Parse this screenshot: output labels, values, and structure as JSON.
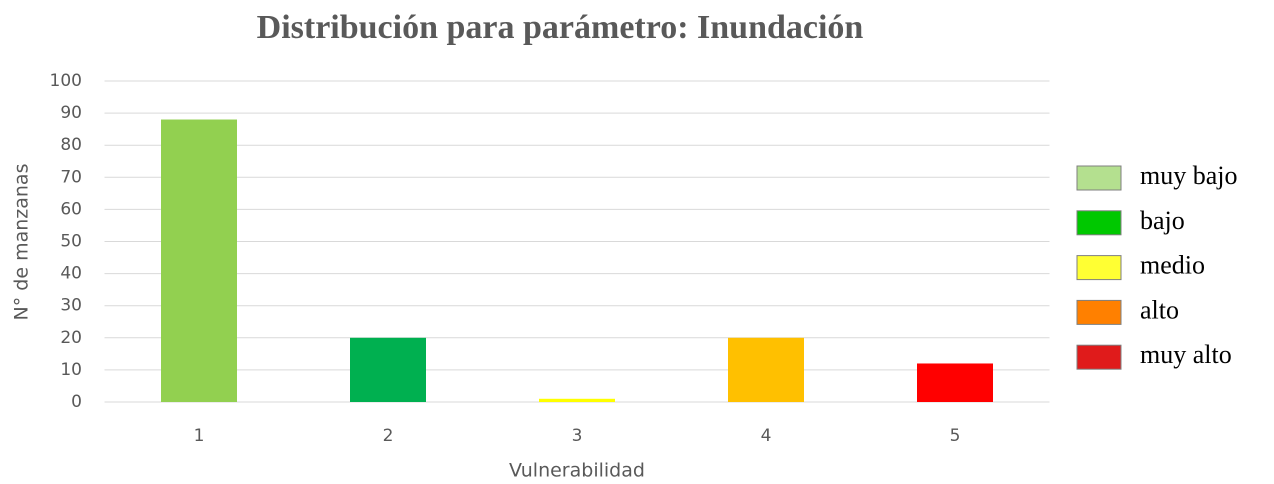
{
  "chart_data": {
    "type": "bar",
    "title": "Distribución para parámetro: Inundación",
    "x_label": "Vulnerabilidad",
    "y_label": "N° de manzanas",
    "categories": [
      "1",
      "2",
      "3",
      "4",
      "5"
    ],
    "values": [
      88,
      20,
      1,
      20,
      12
    ],
    "colors": [
      "#92d050",
      "#00b050",
      "#ffff00",
      "#ffc000",
      "#ff0000"
    ],
    "ylim": [
      0,
      100
    ],
    "yticks": [
      0,
      10,
      20,
      30,
      40,
      50,
      60,
      70,
      80,
      90,
      100
    ],
    "grid": true,
    "legend_position": "right",
    "legend": [
      {
        "name": "muy bajo",
        "color": "#b4e08f"
      },
      {
        "name": "bajo",
        "color": "#00c800"
      },
      {
        "name": "medio",
        "color": "#ffff33"
      },
      {
        "name": "alto",
        "color": "#ff8000"
      },
      {
        "name": "muy alto",
        "color": "#e01b1b"
      }
    ]
  }
}
